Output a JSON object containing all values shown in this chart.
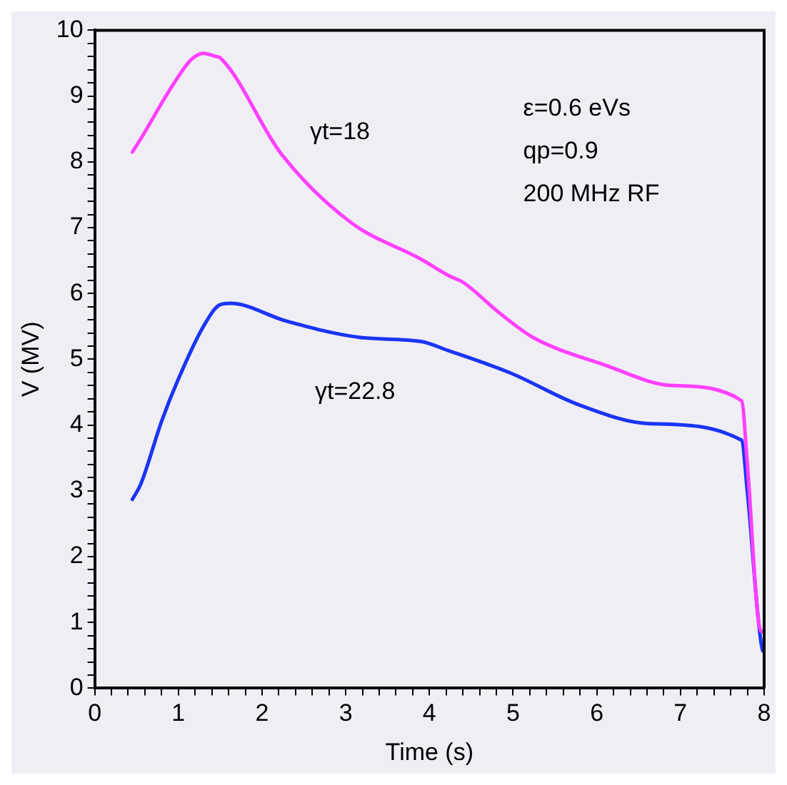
{
  "chart_data": {
    "type": "line",
    "xlabel": "Time (s)",
    "ylabel": "V (MV)",
    "xlim": [
      0,
      8
    ],
    "ylim": [
      0,
      10
    ],
    "xticks": [
      0,
      {
        "value": 0.2,
        "label": null
      },
      {
        "value": 0.4,
        "label": null
      },
      {
        "value": 0.6,
        "label": null
      },
      {
        "value": 0.8,
        "label": null
      },
      1,
      {
        "value": 1.2,
        "label": null
      },
      {
        "value": 1.4,
        "label": null
      },
      {
        "value": 1.6,
        "label": null
      },
      {
        "value": 1.8,
        "label": null
      },
      2,
      {
        "value": 2.2,
        "label": null
      },
      {
        "value": 2.4,
        "label": null
      },
      {
        "value": 2.6,
        "label": null
      },
      {
        "value": 2.8,
        "label": null
      },
      3,
      {
        "value": 3.2,
        "label": null
      },
      {
        "value": 3.4,
        "label": null
      },
      {
        "value": 3.6,
        "label": null
      },
      {
        "value": 3.8,
        "label": null
      },
      4,
      {
        "value": 4.2,
        "label": null
      },
      {
        "value": 4.4,
        "label": null
      },
      {
        "value": 4.6,
        "label": null
      },
      {
        "value": 4.8,
        "label": null
      },
      5,
      {
        "value": 5.2,
        "label": null
      },
      {
        "value": 5.4,
        "label": null
      },
      {
        "value": 5.6,
        "label": null
      },
      {
        "value": 5.8,
        "label": null
      },
      6,
      {
        "value": 6.2,
        "label": null
      },
      {
        "value": 6.4,
        "label": null
      },
      {
        "value": 6.6,
        "label": null
      },
      {
        "value": 6.8,
        "label": null
      },
      7,
      {
        "value": 7.2,
        "label": null
      },
      {
        "value": 7.4,
        "label": null
      },
      {
        "value": 7.6,
        "label": null
      },
      {
        "value": 7.8,
        "label": null
      },
      8
    ],
    "yticks": [
      0,
      {
        "value": 0.2,
        "label": null
      },
      {
        "value": 0.4,
        "label": null
      },
      {
        "value": 0.6,
        "label": null
      },
      {
        "value": 0.8,
        "label": null
      },
      1,
      {
        "value": 1.2,
        "label": null
      },
      {
        "value": 1.4,
        "label": null
      },
      {
        "value": 1.6,
        "label": null
      },
      {
        "value": 1.8,
        "label": null
      },
      2,
      {
        "value": 2.2,
        "label": null
      },
      {
        "value": 2.4,
        "label": null
      },
      {
        "value": 2.6,
        "label": null
      },
      {
        "value": 2.8,
        "label": null
      },
      3,
      {
        "value": 3.2,
        "label": null
      },
      {
        "value": 3.4,
        "label": null
      },
      {
        "value": 3.6,
        "label": null
      },
      {
        "value": 3.8,
        "label": null
      },
      4,
      {
        "value": 4.2,
        "label": null
      },
      {
        "value": 4.4,
        "label": null
      },
      {
        "value": 4.6,
        "label": null
      },
      {
        "value": 4.8,
        "label": null
      },
      5,
      {
        "value": 5.2,
        "label": null
      },
      {
        "value": 5.4,
        "label": null
      },
      {
        "value": 5.6,
        "label": null
      },
      {
        "value": 5.8,
        "label": null
      },
      6,
      {
        "value": 6.2,
        "label": null
      },
      {
        "value": 6.4,
        "label": null
      },
      {
        "value": 6.6,
        "label": null
      },
      {
        "value": 6.8,
        "label": null
      },
      7,
      {
        "value": 7.2,
        "label": null
      },
      {
        "value": 7.4,
        "label": null
      },
      {
        "value": 7.6,
        "label": null
      },
      {
        "value": 7.8,
        "label": null
      },
      8,
      {
        "value": 8.2,
        "label": null
      },
      {
        "value": 8.4,
        "label": null
      },
      {
        "value": 8.6,
        "label": null
      },
      {
        "value": 8.8,
        "label": null
      },
      9,
      {
        "value": 9.2,
        "label": null
      },
      {
        "value": 9.4,
        "label": null
      },
      {
        "value": 9.6,
        "label": null
      },
      {
        "value": 9.8,
        "label": null
      },
      10
    ],
    "grid": false,
    "legend": false,
    "marker": "none",
    "line_style": "solid",
    "annotations": [
      "ε=0.6 eVs",
      "qp=0.9",
      "200 MHz RF"
    ],
    "series": [
      {
        "name": "γt=18",
        "color": "#ff40ff",
        "x": [
          0.45,
          0.55,
          0.9,
          1.15,
          1.3,
          1.45,
          1.5,
          2.23,
          3.06,
          3.9,
          4.23,
          4.4,
          4.85,
          5.24,
          6.08,
          6.91,
          7.73,
          7.8,
          7.95,
          8.0
        ],
        "values": [
          8.15,
          8.35,
          9.1,
          9.55,
          9.65,
          9.6,
          9.58,
          8.12,
          7.08,
          6.52,
          6.27,
          6.17,
          5.69,
          5.33,
          4.92,
          4.6,
          4.37,
          3.4,
          0.9,
          0.85
        ]
      },
      {
        "name": "γt=22.8",
        "color": "#1a35f5",
        "x": [
          0.45,
          0.55,
          0.8,
          1.0,
          1.3,
          1.5,
          1.62,
          2.29,
          3.18,
          3.9,
          4.23,
          4.97,
          5.8,
          6.64,
          7.73,
          7.8,
          7.98,
          8.0
        ],
        "values": [
          2.87,
          3.1,
          4.06,
          4.7,
          5.5,
          5.83,
          5.85,
          5.58,
          5.33,
          5.27,
          5.13,
          4.79,
          4.3,
          4.02,
          3.77,
          2.98,
          0.58,
          0.55
        ]
      }
    ]
  }
}
